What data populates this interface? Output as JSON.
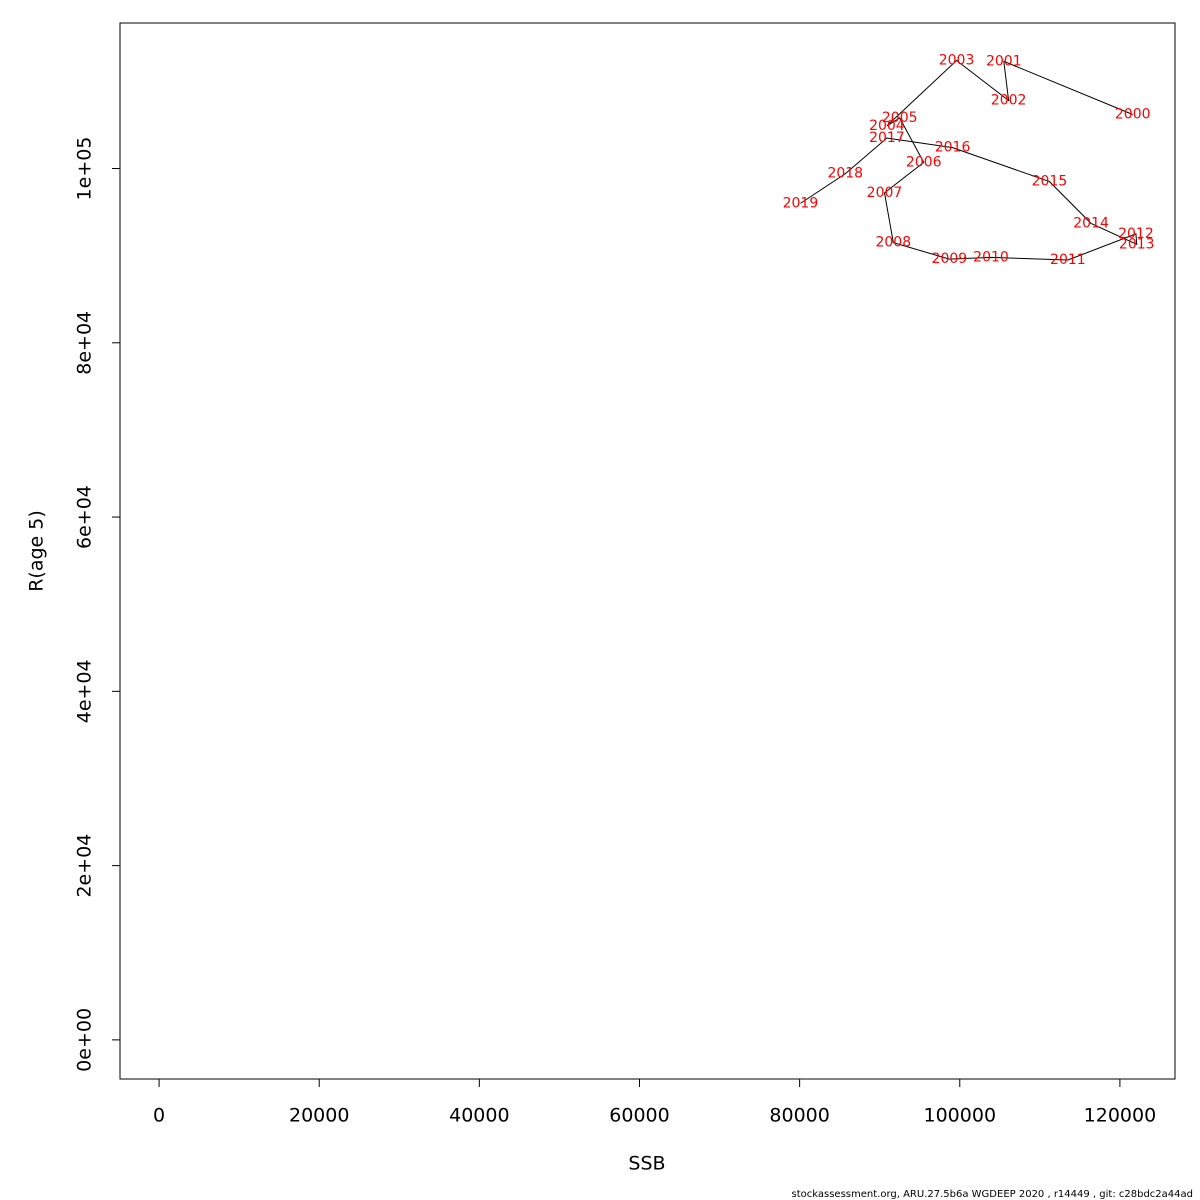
{
  "chart_data": {
    "type": "line",
    "x_label": "SSB",
    "y_label": "R(age 5)",
    "footnote": "stockassessment.org, ARU.27.5b6a  WGDEEP  2020  , r14449 , git: c28bdc2a44ad",
    "point_labels": [
      "2000",
      "2001",
      "2002",
      "2003",
      "2004",
      "2005",
      "2006",
      "2007",
      "2008",
      "2009",
      "2010",
      "2011",
      "2012",
      "2013",
      "2014",
      "2015",
      "2016",
      "2017",
      "2018",
      "2019"
    ],
    "x": [
      121600,
      105500,
      106100,
      99600,
      90900,
      92500,
      95500,
      90600,
      91700,
      98700,
      103900,
      113500,
      122000,
      122100,
      116400,
      111200,
      99100,
      90900,
      85700,
      80100
    ],
    "values": [
      106200,
      112300,
      107800,
      112400,
      104900,
      105800,
      100700,
      97200,
      91500,
      89600,
      89800,
      89500,
      92500,
      91300,
      93700,
      98500,
      102400,
      103500,
      99400,
      96000
    ],
    "line_color": "#000000",
    "label_color": "#ff0000",
    "xlim": [
      -4880,
      126880
    ],
    "ylim": [
      -4490,
      116700
    ],
    "xticks": [
      0,
      20000,
      40000,
      60000,
      80000,
      100000,
      120000
    ],
    "yticks": [
      {
        "value": 0,
        "label": "0e+00"
      },
      {
        "value": 20000,
        "label": "2e+04"
      },
      {
        "value": 40000,
        "label": "4e+04"
      },
      {
        "value": 60000,
        "label": "6e+04"
      },
      {
        "value": 80000,
        "label": "8e+04"
      },
      {
        "value": 100000,
        "label": "1e+05"
      }
    ]
  }
}
